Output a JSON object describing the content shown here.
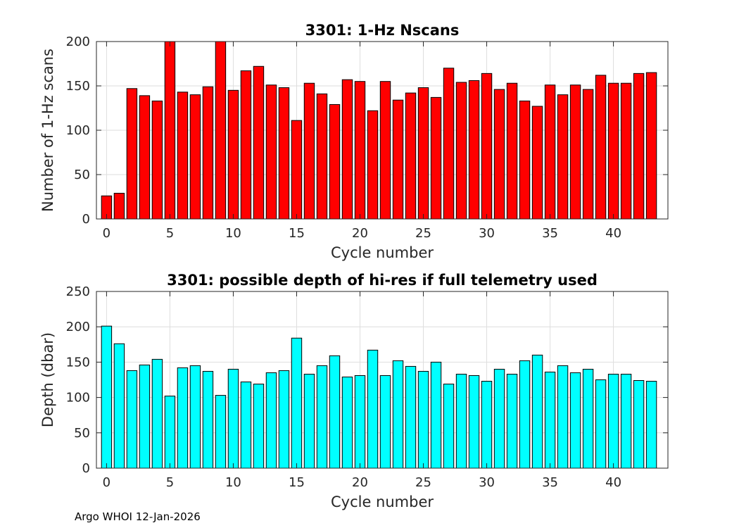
{
  "chart_data": [
    {
      "type": "bar",
      "title": "3301: 1-Hz Nscans",
      "xlabel": "Cycle number",
      "ylabel": "Number of 1-Hz scans",
      "color": "#ff0000",
      "xlim": [
        -0.8,
        44.3
      ],
      "ylim": [
        0,
        200
      ],
      "xticks": [
        0,
        5,
        10,
        15,
        20,
        25,
        30,
        35,
        40
      ],
      "yticks": [
        0,
        50,
        100,
        150,
        200
      ],
      "grid": true,
      "x": [
        0,
        1,
        2,
        3,
        4,
        5,
        6,
        7,
        8,
        9,
        10,
        11,
        12,
        13,
        14,
        15,
        16,
        17,
        18,
        19,
        20,
        21,
        22,
        23,
        24,
        25,
        26,
        27,
        28,
        29,
        30,
        31,
        32,
        33,
        34,
        35,
        36,
        37,
        38,
        39,
        40,
        41,
        42,
        43
      ],
      "values": [
        26,
        29,
        147,
        139,
        133,
        200,
        143,
        140,
        149,
        200,
        145,
        167,
        172,
        151,
        148,
        111,
        153,
        141,
        129,
        157,
        155,
        122,
        155,
        134,
        142,
        148,
        137,
        170,
        154,
        156,
        164,
        146,
        153,
        133,
        127,
        151,
        140,
        151,
        146,
        162,
        153,
        153,
        164,
        165
      ]
    },
    {
      "type": "bar",
      "title": "3301: possible depth of hi-res if full telemetry used",
      "xlabel": "Cycle number",
      "ylabel": "Depth (dbar)",
      "color": "#00ffff",
      "xlim": [
        -0.8,
        44.3
      ],
      "ylim": [
        0,
        250
      ],
      "xticks": [
        0,
        5,
        10,
        15,
        20,
        25,
        30,
        35,
        40
      ],
      "yticks": [
        0,
        50,
        100,
        150,
        200,
        250
      ],
      "grid": true,
      "x": [
        0,
        1,
        2,
        3,
        4,
        5,
        6,
        7,
        8,
        9,
        10,
        11,
        12,
        13,
        14,
        15,
        16,
        17,
        18,
        19,
        20,
        21,
        22,
        23,
        24,
        25,
        26,
        27,
        28,
        29,
        30,
        31,
        32,
        33,
        34,
        35,
        36,
        37,
        38,
        39,
        40,
        41,
        42,
        43
      ],
      "values": [
        201,
        176,
        138,
        146,
        154,
        102,
        142,
        145,
        137,
        103,
        140,
        122,
        119,
        135,
        138,
        184,
        133,
        145,
        159,
        129,
        131,
        167,
        131,
        152,
        144,
        137,
        150,
        119,
        133,
        131,
        123,
        140,
        133,
        152,
        160,
        136,
        145,
        135,
        140,
        125,
        133,
        133,
        124,
        123
      ]
    }
  ],
  "footer": "Argo WHOI 12-Jan-2026"
}
